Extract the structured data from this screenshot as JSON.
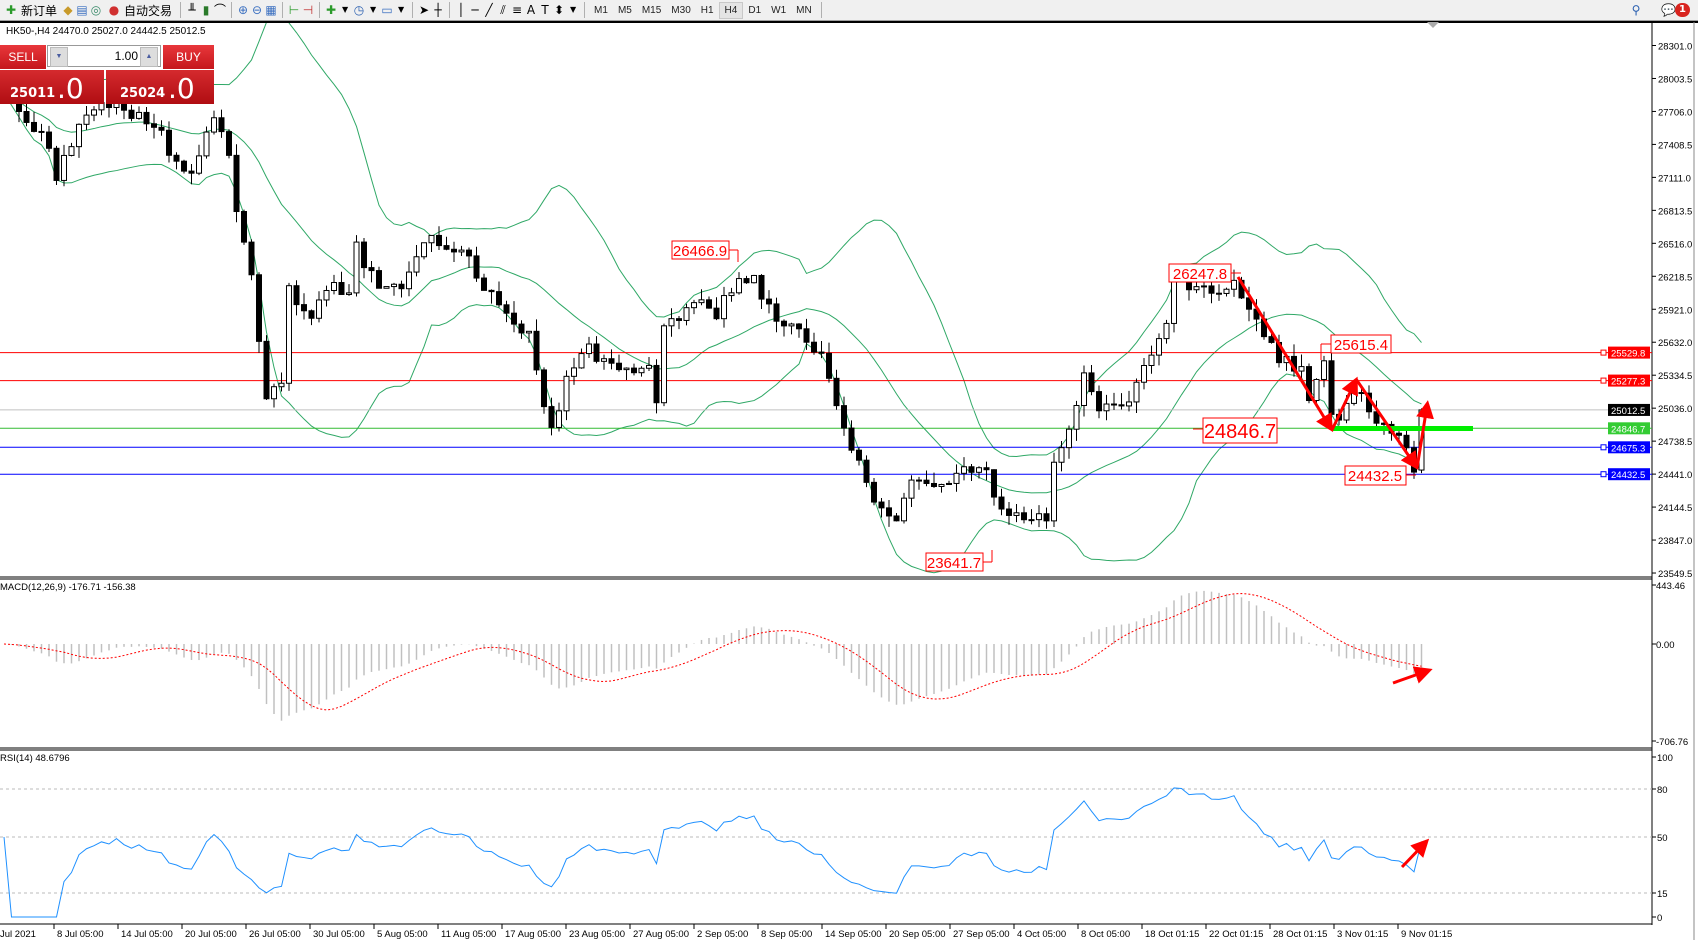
{
  "toolbar": {
    "new_order": "新订单",
    "auto_trading": "自动交易",
    "timeframes": [
      "M1",
      "M5",
      "M15",
      "M30",
      "H1",
      "H4",
      "D1",
      "W1",
      "MN"
    ],
    "active_timeframe": "H4",
    "notification_count": "1"
  },
  "chart": {
    "symbol_line": "HK50-,H4  24470.0 25027.0 24442.5 25012.5"
  },
  "trade_panel": {
    "sell_label": "SELL",
    "buy_label": "BUY",
    "lot": "1.00",
    "sell_price_main": "25011",
    "sell_price_frac": ".0",
    "buy_price_main": "25024",
    "buy_price_frac": ".0"
  },
  "chart_data": [
    {
      "type": "candlestick",
      "symbol": "HK50-",
      "timeframe": "H4",
      "last_bar": {
        "open": 24470.0,
        "high": 25027.0,
        "low": 24442.5,
        "close": 25012.5
      },
      "ylim": [
        23505,
        28513
      ],
      "price_ticks": [
        "28301.0",
        "28003.5",
        "27706.0",
        "27408.5",
        "27111.0",
        "26813.5",
        "26516.0",
        "26218.5",
        "25921.0",
        "25632.0",
        "25334.5",
        "25036.0",
        "24738.5",
        "24441.0",
        "24144.5",
        "23847.0",
        "23549.5"
      ],
      "time_labels": [
        "Jul 2021",
        "8 Jul 05:00",
        "14 Jul 05:00",
        "20 Jul 05:00",
        "26 Jul 05:00",
        "30 Jul 05:00",
        "5 Aug 05:00",
        "11 Aug 05:00",
        "17 Aug 05:00",
        "23 Aug 05:00",
        "27 Aug 05:00",
        "2 Sep 05:00",
        "8 Sep 05:00",
        "14 Sep 05:00",
        "20 Sep 05:00",
        "27 Sep 05:00",
        "4 Oct 05:00",
        "8 Oct 05:00",
        "18 Oct 01:15",
        "22 Oct 01:15",
        "28 Oct 01:15",
        "3 Nov 01:15",
        "9 Nov 01:15"
      ],
      "close_path": [
        [
          0,
          27833
        ],
        [
          6,
          27394
        ],
        [
          7,
          27101
        ],
        [
          10,
          27540
        ],
        [
          13,
          27784
        ],
        [
          15,
          27784
        ],
        [
          21,
          27540
        ],
        [
          23,
          27198
        ],
        [
          25,
          27150
        ],
        [
          28,
          27638
        ],
        [
          30,
          27345
        ],
        [
          31,
          26857
        ],
        [
          33,
          26174
        ],
        [
          35,
          25101
        ],
        [
          37,
          25296
        ],
        [
          38,
          26076
        ],
        [
          41,
          25881
        ],
        [
          43,
          26125
        ],
        [
          46,
          26076
        ],
        [
          47,
          26467
        ],
        [
          50,
          26125
        ],
        [
          53,
          26076
        ],
        [
          55,
          26418
        ],
        [
          57,
          26613
        ],
        [
          60,
          26467
        ],
        [
          63,
          26272
        ],
        [
          66,
          25930
        ],
        [
          70,
          25686
        ],
        [
          72,
          25101
        ],
        [
          73,
          24808
        ],
        [
          75,
          25247
        ],
        [
          77,
          25589
        ],
        [
          80,
          25442
        ],
        [
          83,
          25345
        ],
        [
          86,
          25393
        ],
        [
          87,
          25101
        ],
        [
          88,
          25735
        ],
        [
          90,
          25881
        ],
        [
          92,
          26028
        ],
        [
          95,
          25881
        ],
        [
          98,
          26223
        ],
        [
          100,
          26174
        ],
        [
          103,
          25784
        ],
        [
          106,
          25784
        ],
        [
          109,
          25491
        ],
        [
          111,
          25101
        ],
        [
          113,
          24710
        ],
        [
          116,
          24125
        ],
        [
          119,
          23979
        ],
        [
          121,
          24418
        ],
        [
          125,
          24320
        ],
        [
          128,
          24515
        ],
        [
          131,
          24418
        ],
        [
          134,
          24028
        ],
        [
          137,
          24076
        ],
        [
          139,
          24076
        ],
        [
          140,
          24515
        ],
        [
          142,
          24808
        ],
        [
          144,
          25296
        ],
        [
          146,
          25003
        ],
        [
          150,
          25101
        ],
        [
          152,
          25393
        ],
        [
          155,
          25735
        ],
        [
          156,
          26125
        ],
        [
          158,
          26125
        ],
        [
          161,
          26076
        ],
        [
          164,
          26125
        ],
        [
          167,
          25784
        ],
        [
          170,
          25491
        ],
        [
          173,
          25345
        ],
        [
          174,
          25052
        ],
        [
          176,
          25491
        ],
        [
          177,
          24954
        ],
        [
          179,
          25003
        ],
        [
          181,
          25198
        ],
        [
          183,
          24906
        ],
        [
          186,
          24759
        ],
        [
          187,
          24710
        ],
        [
          188,
          24466
        ],
        [
          189,
          25012.5
        ]
      ],
      "indicator_overlay": "Bollinger Bands (20, 2)",
      "horizontal_lines": [
        {
          "price": 25529.8,
          "label": "25529.8",
          "color": "#ff0000"
        },
        {
          "price": 25277.3,
          "label": "25277.3",
          "color": "#ff0000"
        },
        {
          "price": 25012.5,
          "label": "25012.5",
          "color": "#c0c0c0",
          "label_bg": "#000000"
        },
        {
          "price": 24846.7,
          "label": "24846.7",
          "color": "#33bb33",
          "label_bg": "#33cc33"
        },
        {
          "price": 24675.3,
          "label": "24675.3",
          "color": "#0000ff"
        },
        {
          "price": 24432.5,
          "label": "24432.5",
          "color": "#0000ff"
        }
      ],
      "annotations": [
        "26466.9",
        "23641.7",
        "26247.8",
        "25615.4",
        "24846.7",
        "24432.5"
      ],
      "band_color": "#2fa866",
      "annotation_color": "#ff0000",
      "highlight_level_color": "#00ee00"
    },
    {
      "type": "bar",
      "title": "MACD(12,26,9) -176.71 -156.38",
      "ylim": [
        -706.76,
        443.46
      ],
      "ticks": [
        "443.46",
        "0.00",
        "-706.76"
      ],
      "histogram_color": "#c0c0c0",
      "signal_color": "#ff0000"
    },
    {
      "type": "line",
      "title": "RSI(14) 48.6796",
      "ylim": [
        0,
        100
      ],
      "ticks": [
        "100",
        "80",
        "50",
        "15",
        "0"
      ],
      "levels": [
        80,
        50,
        15
      ],
      "line_color": "#1e90ff"
    }
  ]
}
